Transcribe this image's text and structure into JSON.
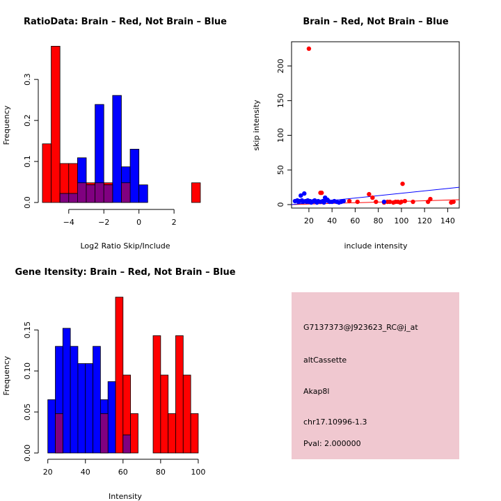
{
  "chart_data": [
    {
      "type": "bar",
      "id": "ratio",
      "title": "RatioData: Brain – Red, Not Brain – Blue",
      "xlabel": "Log2 Ratio Skip/Include",
      "ylabel": "Frequency",
      "xlim": [
        -5.3,
        3.7
      ],
      "ylim": [
        0,
        0.38
      ],
      "xticks": [
        -4,
        -2,
        0,
        2
      ],
      "xtick_labels": [
        "−4",
        "−2",
        "0",
        "2"
      ],
      "yticks": [
        0.0,
        0.1,
        0.2,
        0.3
      ],
      "ytick_labels": [
        "0.0",
        "0.1",
        "0.2",
        "0.3"
      ],
      "bin_width": 0.5,
      "series": [
        {
          "name": "Brain",
          "color": "#ff0000",
          "bins": [
            [
              -5.5,
              -5.0,
              0.143
            ],
            [
              -5.0,
              -4.5,
              0.381
            ],
            [
              -4.5,
              -4.0,
              0.095
            ],
            [
              -4.0,
              -3.5,
              0.095
            ],
            [
              -3.5,
              -3.0,
              0.048
            ],
            [
              -3.0,
              -2.5,
              0.048
            ],
            [
              -2.5,
              -2.0,
              0.048
            ],
            [
              -2.0,
              -1.5,
              0.048
            ],
            [
              -1.0,
              -0.5,
              0.048
            ],
            [
              3.0,
              3.5,
              0.048
            ]
          ]
        },
        {
          "name": "Not Brain",
          "color": "#0000ff",
          "bins": [
            [
              -4.5,
              -4.0,
              0.022
            ],
            [
              -4.0,
              -3.5,
              0.022
            ],
            [
              -3.5,
              -3.0,
              0.109
            ],
            [
              -3.0,
              -2.5,
              0.043
            ],
            [
              -2.5,
              -2.0,
              0.239
            ],
            [
              -2.0,
              -1.5,
              0.043
            ],
            [
              -1.5,
              -1.0,
              0.261
            ],
            [
              -1.0,
              -0.5,
              0.087
            ],
            [
              -0.5,
              0.0,
              0.13
            ],
            [
              0.0,
              0.5,
              0.043
            ]
          ]
        }
      ],
      "overlap_color": "#800080"
    },
    {
      "type": "scatter",
      "id": "scatter",
      "title": "Brain – Red, Not Brain – Blue",
      "xlabel": "include intensity",
      "ylabel": "skip intensity",
      "xlim": [
        5,
        150
      ],
      "ylim": [
        -5,
        235
      ],
      "xticks": [
        20,
        40,
        60,
        80,
        100,
        120,
        140
      ],
      "xtick_labels": [
        "20",
        "40",
        "60",
        "80",
        "100",
        "120",
        "140"
      ],
      "yticks": [
        0,
        50,
        100,
        150,
        200
      ],
      "ytick_labels": [
        "0",
        "50",
        "100",
        "150",
        "200"
      ],
      "series": [
        {
          "name": "Brain",
          "color": "#ff0000",
          "x": [
            20,
            30,
            31,
            55,
            62,
            72,
            75,
            78,
            85,
            88,
            90,
            93,
            95,
            97,
            99,
            100,
            101,
            103,
            110,
            123,
            125,
            143,
            145
          ],
          "y": [
            225,
            17,
            17,
            5,
            4,
            15,
            10,
            4,
            3,
            4,
            4,
            3,
            4,
            4,
            3,
            4,
            30,
            5,
            4,
            4,
            8,
            3,
            4
          ],
          "fit": {
            "x": [
              5,
              150
            ],
            "y": [
              0,
              7
            ]
          }
        },
        {
          "name": "Not Brain",
          "color": "#0000ff",
          "x": [
            8,
            10,
            11,
            12,
            13,
            14,
            15,
            16,
            17,
            18,
            19,
            20,
            21,
            22,
            23,
            24,
            25,
            26,
            27,
            28,
            30,
            32,
            33,
            34,
            35,
            36,
            37,
            38,
            40,
            42,
            44,
            46,
            48,
            50,
            85
          ],
          "y": [
            5,
            6,
            4,
            5,
            13,
            6,
            4,
            16,
            5,
            4,
            6,
            4,
            5,
            3,
            4,
            5,
            6,
            4,
            3,
            5,
            4,
            5,
            3,
            10,
            6,
            7,
            5,
            4,
            4,
            5,
            4,
            3,
            4,
            5,
            4
          ],
          "fit": {
            "x": [
              5,
              150
            ],
            "y": [
              0,
              25
            ]
          }
        }
      ]
    },
    {
      "type": "bar",
      "id": "intensity",
      "title": "Gene Itensity: Brain – Red, Not Brain – Blue",
      "xlabel": "Intensity",
      "ylabel": "Frequency",
      "xlim": [
        19,
        103
      ],
      "ylim": [
        0,
        0.19
      ],
      "xticks": [
        20,
        40,
        60,
        80,
        100
      ],
      "xtick_labels": [
        "20",
        "40",
        "60",
        "80",
        "100"
      ],
      "yticks": [
        0.0,
        0.05,
        0.1,
        0.15
      ],
      "ytick_labels": [
        "0.00",
        "0.05",
        "0.10",
        "0.15"
      ],
      "bin_width": 4,
      "series": [
        {
          "name": "Brain",
          "color": "#ff0000",
          "bins": [
            [
              24,
              28,
              0.048
            ],
            [
              48,
              52,
              0.048
            ],
            [
              56,
              60,
              0.19
            ],
            [
              60,
              64,
              0.095
            ],
            [
              64,
              68,
              0.048
            ],
            [
              76,
              80,
              0.143
            ],
            [
              80,
              84,
              0.095
            ],
            [
              84,
              88,
              0.048
            ],
            [
              88,
              92,
              0.143
            ],
            [
              92,
              96,
              0.095
            ],
            [
              96,
              100,
              0.048
            ]
          ]
        },
        {
          "name": "Not Brain",
          "color": "#0000ff",
          "bins": [
            [
              20,
              24,
              0.065
            ],
            [
              24,
              28,
              0.13
            ],
            [
              28,
              32,
              0.152
            ],
            [
              32,
              36,
              0.13
            ],
            [
              36,
              40,
              0.109
            ],
            [
              40,
              44,
              0.109
            ],
            [
              44,
              48,
              0.13
            ],
            [
              48,
              52,
              0.065
            ],
            [
              52,
              56,
              0.087
            ],
            [
              60,
              64,
              0.022
            ]
          ]
        }
      ],
      "overlap_color": "#800080"
    }
  ],
  "info_panel": {
    "probe": "G7137373@J923623_RC@j_at",
    "event_type": "altCassette",
    "gene": "Akap8l",
    "location": "chr17.10996-1.3",
    "pval": "Pval: 2.000000",
    "pval_color": "#8b0000",
    "background": "#f0c8d0"
  }
}
